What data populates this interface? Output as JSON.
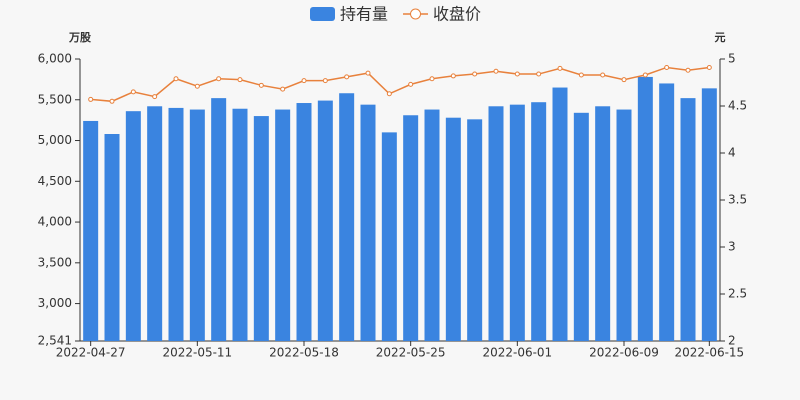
{
  "chart_data": {
    "type": "bar-line",
    "y_label": "万股",
    "y2_label": "元",
    "categories": [
      "2022-04-27",
      null,
      null,
      null,
      null,
      "2022-05-11",
      null,
      null,
      null,
      null,
      "2022-05-18",
      null,
      null,
      null,
      null,
      "2022-05-25",
      null,
      null,
      null,
      null,
      "2022-06-01",
      null,
      null,
      null,
      null,
      "2022-06-09",
      null,
      null,
      null,
      "2022-06-15"
    ],
    "series": [
      {
        "name": "持有量",
        "type": "bar",
        "color": "#3a84e0",
        "values": [
          5240,
          5080,
          5360,
          5420,
          5400,
          5380,
          5520,
          5390,
          5300,
          5380,
          5460,
          5490,
          5580,
          5440,
          5100,
          5310,
          5380,
          5280,
          5260,
          5420,
          5440,
          5470,
          5650,
          5340,
          5420,
          5380,
          5780,
          5700,
          5520,
          5640
        ]
      },
      {
        "name": "收盘价",
        "type": "line",
        "axis": "y2",
        "color": "#e8813c",
        "values": [
          4.57,
          4.55,
          4.65,
          4.6,
          4.79,
          4.71,
          4.79,
          4.78,
          4.72,
          4.68,
          4.77,
          4.77,
          4.81,
          4.85,
          4.63,
          4.73,
          4.79,
          4.82,
          4.84,
          4.87,
          4.84,
          4.84,
          4.9,
          4.83,
          4.83,
          4.78,
          4.83,
          4.91,
          4.88,
          4.91
        ]
      }
    ],
    "ylim": [
      2541,
      6000
    ],
    "yticks": [
      {
        "value": 2541,
        "label": "2,541"
      },
      {
        "value": 3000,
        "label": "3,000"
      },
      {
        "value": 3500,
        "label": "3,500"
      },
      {
        "value": 4000,
        "label": "4,000"
      },
      {
        "value": 4500,
        "label": "4,500"
      },
      {
        "value": 5000,
        "label": "5,000"
      },
      {
        "value": 5500,
        "label": "5,500"
      },
      {
        "value": 6000,
        "label": "6,000"
      }
    ],
    "y2lim": [
      2,
      5
    ],
    "y2ticks": [
      2,
      2.5,
      3,
      3.5,
      4,
      4.5,
      5
    ],
    "grid": false
  }
}
